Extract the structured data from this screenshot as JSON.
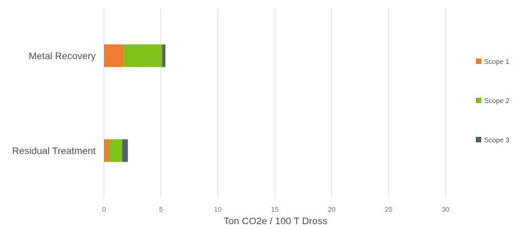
{
  "chart_data": {
    "type": "bar",
    "orientation": "horizontal",
    "stacked": true,
    "categories": [
      "Metal Recovery",
      "Residual Treatment"
    ],
    "series": [
      {
        "name": "Scope 1",
        "color": "#ed7d31",
        "values": [
          1.7,
          0.45
        ]
      },
      {
        "name": "Scope 2",
        "color": "#7ec21a",
        "values": [
          3.4,
          1.15
        ]
      },
      {
        "name": "Scope 3",
        "color": "#556270",
        "values": [
          0.3,
          0.5
        ]
      }
    ],
    "x_ticks": [
      "0",
      "5",
      "10",
      "15",
      "20",
      "25",
      "30"
    ],
    "xlim": [
      0,
      30
    ],
    "xlabel": "Ton CO2e / 100 T Dross",
    "ylabel": "",
    "grid": "vertical",
    "legend_position": "right"
  }
}
